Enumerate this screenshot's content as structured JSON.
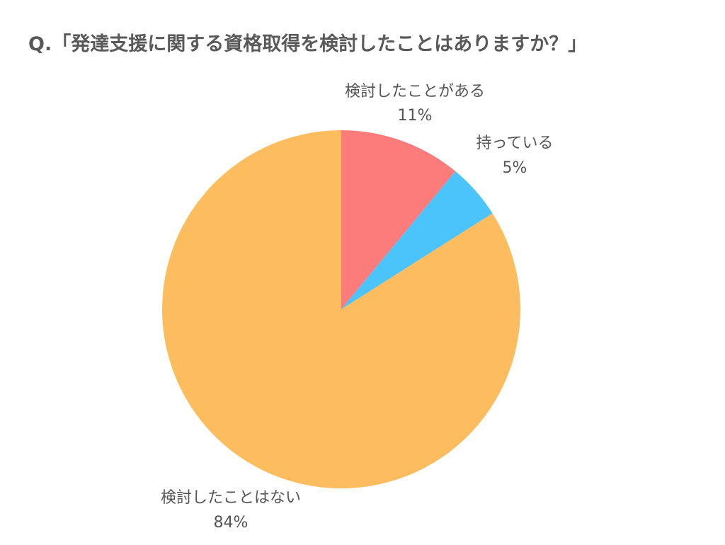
{
  "title": "Q.「発達支援に関する資格取得を検討したことはありますか？」",
  "chart_data": {
    "type": "pie",
    "start_angle_deg": 0,
    "direction": "clockwise",
    "slices": [
      {
        "label": "検討したことがある",
        "value": 11,
        "value_label": "11%",
        "color": "#FC7B7B"
      },
      {
        "label": "持っている",
        "value": 5,
        "value_label": "5%",
        "color": "#4AC4FA"
      },
      {
        "label": "検討したことはない",
        "value": 84,
        "value_label": "84%",
        "color": "#FDBC5D"
      }
    ]
  }
}
